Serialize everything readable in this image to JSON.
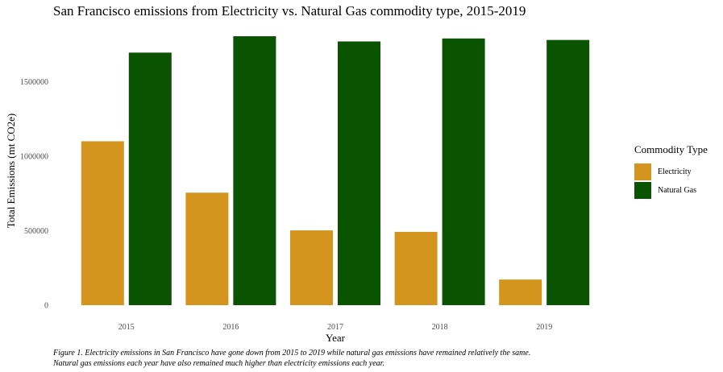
{
  "chart_data": {
    "type": "bar",
    "title": "San Francisco emissions from Electricity vs. Natural Gas commodity type, 2015-2019",
    "xlabel": "Year",
    "ylabel": "Total Emissions (mt CO2e)",
    "categories": [
      "2015",
      "2016",
      "2017",
      "2018",
      "2019"
    ],
    "series": [
      {
        "name": "Electricity",
        "color": "#D4951E",
        "values": [
          1100000,
          755000,
          502000,
          492000,
          172000
        ]
      },
      {
        "name": "Natural Gas",
        "color": "#0A5401",
        "values": [
          1695000,
          1805000,
          1770000,
          1790000,
          1780000
        ]
      }
    ],
    "yticks": [
      0,
      500000,
      1000000,
      1500000
    ],
    "ytick_labels": [
      "0",
      "500000",
      "1000000",
      "1500000"
    ],
    "ylim": [
      0,
      1805000
    ],
    "grid": false,
    "legend": {
      "title": "Commodity Type",
      "position": "right"
    },
    "caption": [
      "Figure 1. Electricity emissions in San Francisco have gone down from 2015 to 2019 while natural gas emissions have remained relatively the same.",
      "Natural gas emissions each year have also remained much higher than electricity emissions each year."
    ]
  }
}
